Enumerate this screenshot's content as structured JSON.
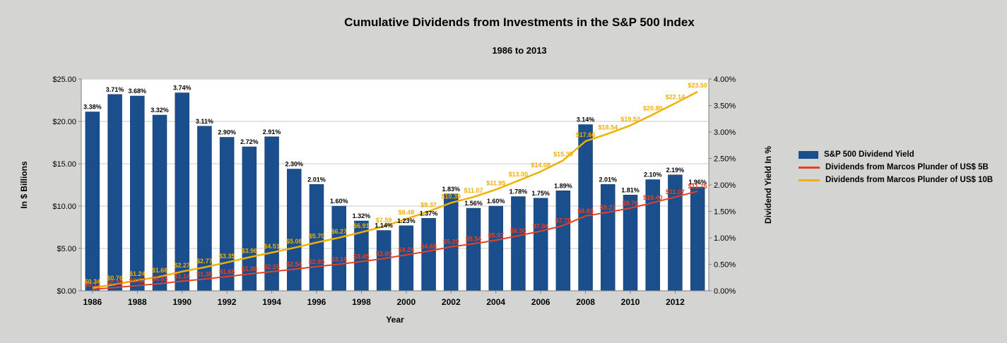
{
  "title": "Cumulative Dividends from Investments in the S&P 500 Index",
  "subtitle": "1986 to 2013",
  "legend": {
    "items": [
      {
        "label": "S&P 500 Dividend Yield",
        "color": "#1b4e8c",
        "marker": "bar"
      },
      {
        "label": "Dividends from Marcos Plunder of US$ 5B",
        "color": "#e8401f",
        "marker": "line"
      },
      {
        "label": "Dividends from Marcos Plunder of US$ 10B",
        "color": "#f0b000",
        "marker": "line"
      }
    ]
  },
  "chart_data": {
    "type": "bar",
    "combo": "bar + 2 cumulative lines",
    "title": "Cumulative Dividends from Investments in the S&P 500 Index",
    "subtitle": "1986 to 2013",
    "xlabel": "Year",
    "x": [
      1986,
      1987,
      1988,
      1989,
      1990,
      1991,
      1992,
      1993,
      1994,
      1995,
      1996,
      1997,
      1998,
      1999,
      2000,
      2001,
      2002,
      2003,
      2004,
      2005,
      2006,
      2007,
      2008,
      2009,
      2010,
      2011,
      2012,
      2013
    ],
    "x_tick_labels": [
      "1986",
      "1988",
      "1990",
      "1992",
      "1994",
      "1996",
      "1998",
      "2000",
      "2002",
      "2004",
      "2006",
      "2008",
      "2010",
      "2012"
    ],
    "left_axis": {
      "title": "In $ Billions",
      "min": 0,
      "max": 25,
      "step": 5,
      "ticks": [
        "$0.00",
        "$5.00",
        "$10.00",
        "$15.00",
        "$20.00",
        "$25.00"
      ]
    },
    "right_axis": {
      "title": "Dividend Yield In %",
      "min": 0,
      "max": 4,
      "step": 0.5,
      "ticks": [
        "0.00%",
        "0.50%",
        "1.00%",
        "1.50%",
        "2.00%",
        "2.50%",
        "3.00%",
        "3.50%",
        "4.00%"
      ]
    },
    "series": [
      {
        "name": "S&P 500 Dividend Yield",
        "type": "bar",
        "axis": "right",
        "values": [
          3.38,
          3.71,
          3.68,
          3.32,
          3.74,
          3.11,
          2.9,
          2.72,
          2.91,
          2.3,
          2.01,
          1.6,
          1.32,
          1.14,
          1.23,
          1.37,
          1.83,
          1.56,
          1.6,
          1.78,
          1.75,
          1.89,
          3.14,
          2.01,
          1.81,
          2.1,
          2.19,
          1.96
        ],
        "labels": [
          "3.38%",
          "3.71%",
          "3.68%",
          "3.32%",
          "3.74%",
          "3.11%",
          "2.90%",
          "2.72%",
          "2.91%",
          "2.30%",
          "2.01%",
          "1.60%",
          "1.32%",
          "1.14%",
          "1.23%",
          "1.37%",
          "1.83%",
          "1.56%",
          "1.60%",
          "1.78%",
          "1.75%",
          "1.89%",
          "3.14%",
          "2.01%",
          "1.81%",
          "2.10%",
          "2.19%",
          "1.96%"
        ]
      },
      {
        "name": "Dividends from Marcos Plunder of US$ 5B",
        "type": "line",
        "axis": "left",
        "values": [
          0.17,
          0.38,
          0.62,
          0.83,
          1.14,
          1.38,
          1.68,
          1.98,
          2.26,
          2.54,
          2.85,
          3.14,
          3.45,
          3.8,
          4.24,
          4.68,
          5.2,
          5.54,
          5.97,
          6.5,
          7.04,
          7.7,
          8.83,
          9.27,
          9.76,
          10.4,
          11.07,
          11.75
        ],
        "labels": [
          "$0.17",
          "$0.38",
          "$0.62",
          "$0.83",
          "$1.14",
          "$1.38",
          "$1.68",
          "$1.98",
          "$2.26",
          "$2.54",
          "$2.85",
          "$3.14",
          "$3.45",
          "$3.80",
          "$4.24",
          "$4.68",
          "$5.20",
          "$5.54",
          "$5.97",
          "$6.50",
          "$7.04",
          "$7.70",
          "$8.83",
          "$9.27",
          "$9.76",
          "$10.40",
          "$11.07",
          "$11.75"
        ]
      },
      {
        "name": "Dividends from Marcos Plunder of US$ 10B",
        "type": "line",
        "axis": "left",
        "values": [
          0.34,
          0.76,
          1.24,
          1.66,
          2.27,
          2.77,
          3.35,
          3.96,
          4.51,
          5.08,
          5.7,
          6.27,
          6.91,
          7.59,
          8.48,
          9.37,
          10.39,
          11.07,
          11.95,
          13.0,
          14.08,
          15.39,
          17.66,
          18.54,
          19.52,
          20.8,
          22.14,
          23.5
        ],
        "labels": [
          "$0.34",
          "$0.76",
          "$1.24",
          "$1.66",
          "$2.27",
          "$2.77",
          "$3.35",
          "$3.96",
          "$4.51",
          "$5.08",
          "$5.70",
          "$6.27",
          "$6.91",
          "$7.59",
          "$8.48",
          "$9.37",
          "$10.39",
          "$11.07",
          "$11.95",
          "$13.00",
          "$14.08",
          "$15.39",
          "$17.66",
          "$18.54",
          "$19.52",
          "$20.80",
          "$22.14",
          "$23.50"
        ]
      }
    ],
    "colors": {
      "background": "#d4d4d2",
      "plot_bg": "#ffffff",
      "grid": "#c9c9c9",
      "axis": "#7f7f7f",
      "bar": "#1b4e8c",
      "line_5b": "#e8401f",
      "line_10b": "#f0b000"
    },
    "grid": "horizontal, every $5.00",
    "legend_position": "right"
  }
}
